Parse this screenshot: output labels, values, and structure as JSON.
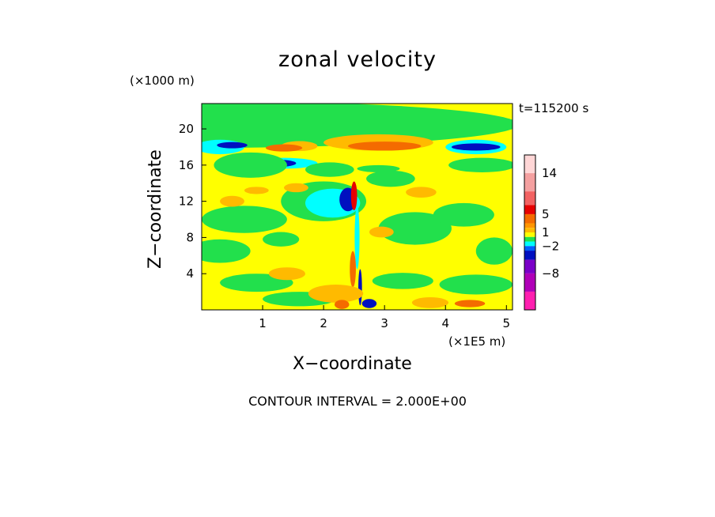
{
  "chart_data": {
    "type": "heatmap",
    "title": "zonal velocity",
    "xlabel": "X−coordinate",
    "ylabel": "Z−coordinate",
    "x_unit": "(×1E5 m)",
    "y_unit": "(×1000 m)",
    "time_label": "t=115200 s",
    "footer": "CONTOUR INTERVAL = 2.000E+00",
    "contour_interval": 2.0,
    "xlim": [
      0,
      5.1
    ],
    "ylim": [
      0,
      22.8
    ],
    "x_ticks": [
      {
        "value": 1,
        "label": "1"
      },
      {
        "value": 2,
        "label": "2"
      },
      {
        "value": 3,
        "label": "3"
      },
      {
        "value": 4,
        "label": "4"
      },
      {
        "value": 5,
        "label": "5"
      }
    ],
    "y_ticks": [
      {
        "value": 4,
        "label": "4"
      },
      {
        "value": 8,
        "label": "8"
      },
      {
        "value": 12,
        "label": "12"
      },
      {
        "value": 16,
        "label": "16"
      },
      {
        "value": 20,
        "label": "20"
      }
    ],
    "colorbar": {
      "levels_top_to_bottom": [
        {
          "lo": 14,
          "hi": 18,
          "color": "#ffd6d6"
        },
        {
          "lo": 10,
          "hi": 14,
          "color": "#f4a0a0"
        },
        {
          "lo": 7,
          "hi": 10,
          "color": "#f26262"
        },
        {
          "lo": 5,
          "hi": 7,
          "color": "#e60000"
        },
        {
          "lo": 3,
          "hi": 5,
          "color": "#f46b00"
        },
        {
          "lo": 2,
          "hi": 3,
          "color": "#ff9500"
        },
        {
          "lo": 1,
          "hi": 2,
          "color": "#ffba00"
        },
        {
          "lo": 0,
          "hi": 1,
          "color": "#ffff00"
        },
        {
          "lo": -1,
          "hi": 0,
          "color": "#22e04c"
        },
        {
          "lo": -2,
          "hi": -1,
          "color": "#00ffff"
        },
        {
          "lo": -3,
          "hi": -2,
          "color": "#0060ff"
        },
        {
          "lo": -5,
          "hi": -3,
          "color": "#0010c0"
        },
        {
          "lo": -8,
          "hi": -5,
          "color": "#7a00c8"
        },
        {
          "lo": -12,
          "hi": -8,
          "color": "#b000b8"
        },
        {
          "lo": -16,
          "hi": -12,
          "color": "#ff1fb0"
        }
      ],
      "labels": [
        {
          "value": 14,
          "label": "14"
        },
        {
          "value": 5,
          "label": "5"
        },
        {
          "value": 1,
          "label": "1"
        },
        {
          "value": -2,
          "label": "−2"
        },
        {
          "value": -8,
          "label": "−8"
        }
      ]
    },
    "field": {
      "background": 0.5,
      "regions": [
        {
          "x": 0.0,
          "y": 20.5,
          "rx": 5.2,
          "ry": 2.6,
          "v": -0.5
        },
        {
          "x": 0.3,
          "y": 18.0,
          "rx": 0.4,
          "ry": 0.8,
          "v": -1.5
        },
        {
          "x": 0.5,
          "y": 18.2,
          "rx": 0.25,
          "ry": 0.35,
          "v": -4
        },
        {
          "x": 1.6,
          "y": 18.1,
          "rx": 0.3,
          "ry": 0.55,
          "v": 1.5
        },
        {
          "x": 1.35,
          "y": 17.9,
          "rx": 0.3,
          "ry": 0.4,
          "v": 3.5
        },
        {
          "x": 2.9,
          "y": 18.5,
          "rx": 0.9,
          "ry": 0.9,
          "v": 1.5
        },
        {
          "x": 3.0,
          "y": 18.1,
          "rx": 0.6,
          "ry": 0.5,
          "v": 3.5
        },
        {
          "x": 4.5,
          "y": 18.0,
          "rx": 0.5,
          "ry": 0.8,
          "v": -1.5
        },
        {
          "x": 4.5,
          "y": 18.0,
          "rx": 0.4,
          "ry": 0.4,
          "v": -4
        },
        {
          "x": 1.35,
          "y": 16.2,
          "rx": 0.55,
          "ry": 0.6,
          "v": -1.5
        },
        {
          "x": 1.25,
          "y": 16.2,
          "rx": 0.3,
          "ry": 0.4,
          "v": -4
        },
        {
          "x": 0.8,
          "y": 16.0,
          "rx": 0.6,
          "ry": 1.4,
          "v": -0.5
        },
        {
          "x": 2.1,
          "y": 15.5,
          "rx": 0.4,
          "ry": 0.8,
          "v": -0.5
        },
        {
          "x": 2.9,
          "y": 15.6,
          "rx": 0.35,
          "ry": 0.4,
          "v": -0.5
        },
        {
          "x": 3.1,
          "y": 14.5,
          "rx": 0.4,
          "ry": 0.9,
          "v": -0.5
        },
        {
          "x": 4.6,
          "y": 16.0,
          "rx": 0.55,
          "ry": 0.8,
          "v": -0.5
        },
        {
          "x": 2.0,
          "y": 12.0,
          "rx": 0.7,
          "ry": 2.2,
          "v": -0.5
        },
        {
          "x": 2.15,
          "y": 11.8,
          "rx": 0.45,
          "ry": 1.6,
          "v": -1.5
        },
        {
          "x": 2.4,
          "y": 12.2,
          "rx": 0.14,
          "ry": 1.3,
          "v": -4
        },
        {
          "x": 2.5,
          "y": 12.6,
          "rx": 0.05,
          "ry": 1.6,
          "v": 6
        },
        {
          "x": 2.55,
          "y": 8.0,
          "rx": 0.04,
          "ry": 3.5,
          "v": -1.5
        },
        {
          "x": 2.48,
          "y": 4.5,
          "rx": 0.05,
          "ry": 2.0,
          "v": 4
        },
        {
          "x": 2.6,
          "y": 2.5,
          "rx": 0.03,
          "ry": 2.0,
          "v": -4
        },
        {
          "x": 0.7,
          "y": 10.0,
          "rx": 0.7,
          "ry": 1.5,
          "v": -0.5
        },
        {
          "x": 0.3,
          "y": 6.5,
          "rx": 0.5,
          "ry": 1.3,
          "v": -0.5
        },
        {
          "x": 1.3,
          "y": 7.8,
          "rx": 0.3,
          "ry": 0.8,
          "v": -0.5
        },
        {
          "x": 3.5,
          "y": 9.0,
          "rx": 0.6,
          "ry": 1.8,
          "v": -0.5
        },
        {
          "x": 4.3,
          "y": 10.5,
          "rx": 0.5,
          "ry": 1.3,
          "v": -0.5
        },
        {
          "x": 4.8,
          "y": 6.5,
          "rx": 0.3,
          "ry": 1.5,
          "v": -0.5
        },
        {
          "x": 0.9,
          "y": 3.0,
          "rx": 0.6,
          "ry": 1.0,
          "v": -0.5
        },
        {
          "x": 1.6,
          "y": 1.2,
          "rx": 0.6,
          "ry": 0.8,
          "v": -0.5
        },
        {
          "x": 3.3,
          "y": 3.2,
          "rx": 0.5,
          "ry": 0.9,
          "v": -0.5
        },
        {
          "x": 4.5,
          "y": 2.8,
          "rx": 0.6,
          "ry": 1.1,
          "v": -0.5
        },
        {
          "x": 0.5,
          "y": 12.0,
          "rx": 0.2,
          "ry": 0.6,
          "v": 1.5
        },
        {
          "x": 0.9,
          "y": 13.2,
          "rx": 0.2,
          "ry": 0.4,
          "v": 1.5
        },
        {
          "x": 1.55,
          "y": 13.5,
          "rx": 0.2,
          "ry": 0.5,
          "v": 1.5
        },
        {
          "x": 2.95,
          "y": 8.6,
          "rx": 0.2,
          "ry": 0.6,
          "v": 1.5
        },
        {
          "x": 3.6,
          "y": 13.0,
          "rx": 0.25,
          "ry": 0.6,
          "v": 1.5
        },
        {
          "x": 1.4,
          "y": 4.0,
          "rx": 0.3,
          "ry": 0.7,
          "v": 1.5
        },
        {
          "x": 2.2,
          "y": 1.8,
          "rx": 0.45,
          "ry": 1.0,
          "v": 1.5
        },
        {
          "x": 2.3,
          "y": 0.6,
          "rx": 0.12,
          "ry": 0.5,
          "v": 4
        },
        {
          "x": 2.75,
          "y": 0.7,
          "rx": 0.12,
          "ry": 0.5,
          "v": -4
        },
        {
          "x": 3.75,
          "y": 0.8,
          "rx": 0.3,
          "ry": 0.6,
          "v": 1.5
        },
        {
          "x": 4.4,
          "y": 0.7,
          "rx": 0.25,
          "ry": 0.4,
          "v": 3.5
        }
      ]
    }
  }
}
